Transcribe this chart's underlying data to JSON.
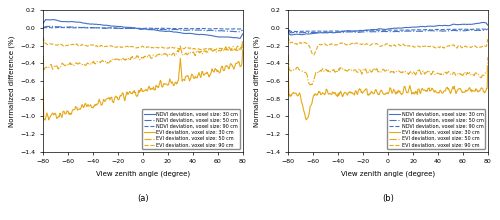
{
  "xlabel": "View zenith angle (degree)",
  "ylabel": "Normalized difference (%)",
  "xlim": [
    -80,
    80
  ],
  "ylim": [
    -1.4,
    0.2
  ],
  "xticks": [
    -80,
    -60,
    -40,
    -20,
    0,
    20,
    40,
    60,
    80
  ],
  "yticks": [
    -1.4,
    -1.2,
    -1.0,
    -0.8,
    -0.6,
    -0.4,
    -0.2,
    0.0,
    0.2
  ],
  "color_blue": "#4472C4",
  "color_orange": "#E6A817",
  "legend_entries": [
    "NDVI deviation, voxel size: 30 cm",
    "NDVI deviation, voxel size: 50 cm",
    "NDVI deviation, voxel size: 90 cm",
    "EVI deviation, voxel size: 30 cm",
    "EVI deviation, voxel size: 50 cm",
    "EVI deviation, voxel size: 90 cm"
  ],
  "figsize": [
    5.0,
    2.2
  ],
  "dpi": 100
}
